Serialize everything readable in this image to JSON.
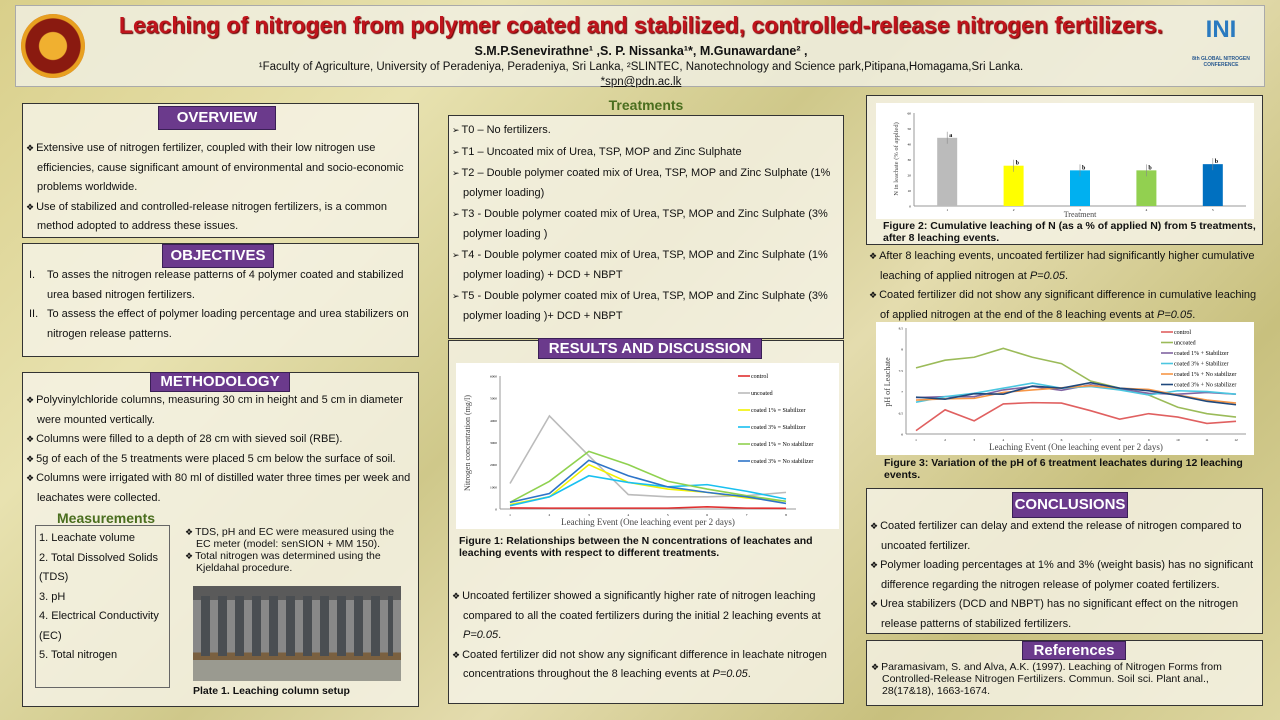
{
  "header": {
    "title": "Leaching of nitrogen from polymer coated and stabilized, controlled-release nitrogen fertilizers.",
    "authors": "S.M.P.Senevirathne¹ ,S. P. Nissanka¹*, M.Gunawardane² ,",
    "affiliations": "¹Faculty of Agriculture, University of Peradeniya, Peradeniya, Sri Lanka, ²SLINTEC, Nanotechnology and Science park,Pitipana,Homagama,Sri Lanka.",
    "email": "*spn@pdn.ac.lk",
    "conference_logo": "INI",
    "conference_text": "8th GLOBAL NITROGEN CONFERENCE"
  },
  "overview": {
    "title": "OVERVIEW",
    "items": [
      "Extensive use of nitrogen fertilizer, coupled with their low nitrogen use efficiencies, cause significant amount of environmental and socio-economic problems worldwide.",
      "Use of stabilized and controlled-release nitrogen fertilizers, is a common method adopted to address these issues."
    ]
  },
  "objectives": {
    "title": "OBJECTIVES",
    "items": [
      {
        "num": "I.",
        "text": "To asses the nitrogen release patterns of 4 polymer coated and stabilized urea based nitrogen fertilizers."
      },
      {
        "num": "II.",
        "text": "To assess the effect of polymer loading percentage and urea stabilizers on nitrogen release patterns."
      }
    ]
  },
  "methodology": {
    "title": "METHODOLOGY",
    "items": [
      "Polyvinylchloride columns, measuring 30 cm in height and  5 cm in diameter were mounted vertically.",
      "Columns were filled to a depth of 28 cm with sieved soil (RBE).",
      "5g of each of the 5 treatments were placed 5 cm below the surface of soil.",
      "Columns were irrigated with 80 ml of distilled water three times per week and leachates were collected."
    ],
    "measurements_title": "Measurements",
    "measurements": [
      "1. Leachate volume",
      "2. Total Dissolved Solids (TDS)",
      "3. pH",
      "4. Electrical Conductivity (EC)",
      "5. Total nitrogen"
    ],
    "notes": [
      "TDS, pH and EC were measured using the EC meter (model: senSION + MM 150).",
      "Total nitrogen was determined using the Kjeldahal procedure."
    ],
    "plate_caption": "Plate 1. Leaching column setup"
  },
  "treatments": {
    "title": "Treatments",
    "items": [
      "T0 – No fertilizers.",
      "T1 – Uncoated mix of Urea, TSP, MOP and Zinc Sulphate",
      "T2 – Double polymer coated mix of Urea, TSP, MOP and Zinc Sulphate (1% polymer loading)",
      "T3 - Double polymer coated mix of Urea, TSP, MOP and Zinc Sulphate (3% polymer loading )",
      "T4 - Double polymer coated mix of Urea, TSP, MOP and Zinc Sulphate (1% polymer loading) + DCD + NBPT",
      "T5 - Double polymer coated mix of Urea, TSP, MOP and Zinc Sulphate (3% polymer loading )+ DCD + NBPT"
    ]
  },
  "results": {
    "title": "RESULTS AND DISCUSSION",
    "fig1_caption": "Figure 1: Relationships between the N concentrations of leachates and leaching events with respect to different treatments.",
    "items": [
      {
        "pre": "Uncoated fertilizer showed a significantly higher rate of nitrogen leaching compared to all the coated fertilizers during the initial 2 leaching events at ",
        "p": "P=0.05",
        "post": "."
      },
      {
        "pre": "Coated fertilizer did not show any significant difference in leachate nitrogen concentrations throughout the 8 leaching events at ",
        "p": "P=0.05",
        "post": "."
      }
    ]
  },
  "right": {
    "fig2_caption": "Figure 2: Cumulative leaching of N (as a % of applied N) from 5 treatments, after 8 leaching events.",
    "items": [
      {
        "pre": "After 8 leaching events, uncoated fertilizer had significantly higher cumulative leaching of applied nitrogen at ",
        "p": "P=0.05",
        "post": "."
      },
      {
        "pre": "Coated fertilizer did not show any significant difference in cumulative leaching of applied nitrogen at the end of the 8 leaching events at ",
        "p": "P=0.05",
        "post": "."
      }
    ],
    "fig3_caption": "Figure 3: Variation of the pH of 6 treatment leachates during 12 leaching events."
  },
  "conclusions": {
    "title": "CONCLUSIONS",
    "items": [
      "Coated fertilizer can delay and extend the release of nitrogen compared to uncoated fertilizer.",
      "Polymer loading percentages at 1% and 3% (weight basis) has no significant difference regarding the nitrogen release of polymer coated fertilizers.",
      "Urea stabilizers (DCD and NBPT) has no significant effect on the nitrogen release patterns of stabilized fertilizers."
    ]
  },
  "references": {
    "title": "References",
    "items": [
      "Paramasivam, S. and Alva, A.K. (1997). Leaching of Nitrogen Forms from Controlled-Release Nitrogen Fertilizers. Commun. Soil sci. Plant anal., 28(17&18), 1663-1674."
    ]
  },
  "colors": {
    "title": "#c0141c",
    "pill": "#6b3a8c",
    "green_heading": "#4a6e1e"
  },
  "chart_data": [
    {
      "type": "line",
      "title": "",
      "xlabel": "Leaching Event (One leaching event per 2 days)",
      "ylabel": "Nitrogen concentration (mg/l)",
      "x": [
        1,
        2,
        3,
        4,
        5,
        6,
        7,
        8
      ],
      "ylim": [
        0,
        6000
      ],
      "yticks": [
        0,
        1000,
        2000,
        3000,
        4000,
        5000,
        6000
      ],
      "legend": "right",
      "grid": false,
      "series": [
        {
          "name": "control",
          "color": "#e03030",
          "values": [
            50,
            40,
            40,
            40,
            40,
            100,
            40,
            30
          ]
        },
        {
          "name": "uncoated",
          "color": "#bbbbbb",
          "values": [
            1150,
            4200,
            2400,
            650,
            550,
            550,
            600,
            750
          ]
        },
        {
          "name": "coated 1% = Stabilizer",
          "color": "#f2f200",
          "values": [
            200,
            550,
            2000,
            1200,
            900,
            750,
            500,
            350
          ]
        },
        {
          "name": "coated 3% = Stabilizer",
          "color": "#19c0f0",
          "values": [
            150,
            550,
            1500,
            1200,
            1000,
            1100,
            800,
            450
          ]
        },
        {
          "name": "coated 1% = No stabilizer",
          "color": "#8fd14f",
          "values": [
            300,
            1250,
            2600,
            2000,
            1250,
            900,
            600,
            350
          ]
        },
        {
          "name": "coated 3% = No stabilizer",
          "color": "#2e74c8",
          "values": [
            300,
            700,
            2200,
            1500,
            1000,
            750,
            550,
            250
          ]
        }
      ]
    },
    {
      "type": "bar",
      "title": "",
      "xlabel": "Treatment",
      "ylabel": "N in leachate (% of applied)",
      "categories": [
        "1",
        "2",
        "3",
        "4",
        "5"
      ],
      "ylim": [
        0,
        60
      ],
      "yticks": [
        0,
        10,
        20,
        30,
        40,
        50,
        60
      ],
      "values": [
        44,
        26,
        23,
        23,
        27
      ],
      "labels": [
        "a",
        "b",
        "b",
        "b",
        "b"
      ],
      "colors": [
        "#bbbbbb",
        "#ffff00",
        "#00b0f0",
        "#92d050",
        "#0070c0"
      ]
    },
    {
      "type": "line",
      "title": "",
      "xlabel": "Leaching Event (One leaching event per 2 days)",
      "ylabel": "pH of Leachate",
      "x": [
        1,
        2,
        3,
        4,
        5,
        6,
        7,
        8,
        9,
        10,
        11,
        12
      ],
      "ylim": [
        6,
        8.5
      ],
      "yticks": [
        6,
        6.5,
        7,
        7.5,
        8,
        8.5
      ],
      "legend": "top-right",
      "grid": false,
      "series": [
        {
          "name": "control",
          "color": "#e06060",
          "values": [
            6.08,
            6.57,
            6.31,
            6.71,
            6.74,
            6.73,
            6.55,
            6.35,
            6.48,
            6.4,
            6.25,
            6.3
          ]
        },
        {
          "name": "uncoated",
          "color": "#9bbb59",
          "values": [
            7.56,
            7.74,
            7.81,
            8.02,
            7.81,
            7.66,
            7.25,
            7.08,
            6.92,
            6.63,
            6.48,
            6.4
          ]
        },
        {
          "name": "coated 1% + Stabilizer",
          "color": "#8064a2",
          "values": [
            6.86,
            6.88,
            6.88,
            7.04,
            7.12,
            7.03,
            7.16,
            7.06,
            6.96,
            6.94,
            6.98,
            6.94
          ]
        },
        {
          "name": "coated 3% + Stabilizer",
          "color": "#4bc6e0",
          "values": [
            6.75,
            6.88,
            6.96,
            7.08,
            7.2,
            7.08,
            7.12,
            7.04,
            6.92,
            7.02,
            7.0,
            6.94
          ]
        },
        {
          "name": "coated 1% + No stabilizer",
          "color": "#f79646",
          "values": [
            6.8,
            6.83,
            6.84,
            6.98,
            7.04,
            7.09,
            7.14,
            7.08,
            7.05,
            6.92,
            6.8,
            6.73
          ]
        },
        {
          "name": "coated 3% + No stabilizer",
          "color": "#1f497d",
          "values": [
            6.87,
            6.82,
            6.95,
            6.94,
            7.13,
            7.08,
            7.21,
            7.08,
            7.02,
            6.91,
            6.77,
            6.69
          ]
        }
      ]
    }
  ]
}
